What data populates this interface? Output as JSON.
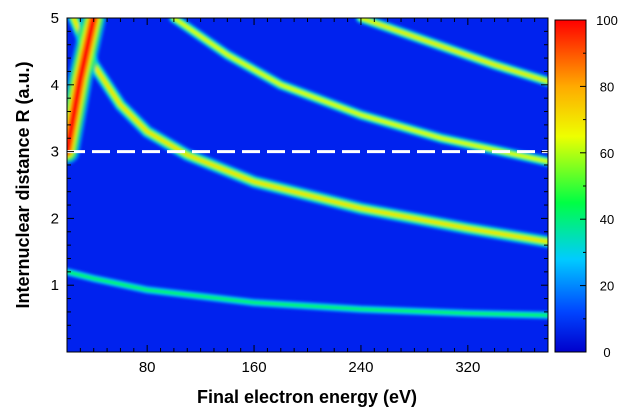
{
  "chart_data": {
    "type": "heatmap",
    "title": "",
    "xlabel": "Final electron energy (eV)",
    "ylabel": "Internuclear distance R (a.u.)",
    "xlim": [
      20,
      380
    ],
    "ylim": [
      0,
      5
    ],
    "x_ticks": [
      80,
      160,
      240,
      320
    ],
    "x_tick_labels": [
      "80",
      "160",
      "240",
      "320"
    ],
    "y_ticks": [
      1,
      2,
      3,
      4,
      5
    ],
    "y_tick_labels": [
      "1",
      "2",
      "3",
      "4",
      "5"
    ],
    "colorbar": {
      "range": [
        0,
        100
      ],
      "ticks": [
        0,
        20,
        40,
        60,
        80,
        100
      ],
      "tick_labels": [
        "0",
        "20",
        "40",
        "60",
        "80",
        "100"
      ],
      "colormap": [
        "#0000cc",
        "#0044ff",
        "#00ccff",
        "#00ff44",
        "#eeff00",
        "#ffaa00",
        "#ff0000"
      ]
    },
    "reference_line": {
      "y": 3.0,
      "style": "dashed",
      "color": "#ffffff"
    },
    "bands": [
      {
        "points": [
          [
            20,
            1.2
          ],
          [
            40,
            1.1
          ],
          [
            80,
            0.93
          ],
          [
            160,
            0.74
          ],
          [
            240,
            0.64
          ],
          [
            320,
            0.58
          ],
          [
            380,
            0.55
          ]
        ],
        "peak": 45,
        "width": 0.045
      },
      {
        "points": [
          [
            25,
            5.0
          ],
          [
            40,
            4.3
          ],
          [
            60,
            3.7
          ],
          [
            80,
            3.3
          ],
          [
            110,
            2.95
          ],
          [
            160,
            2.55
          ],
          [
            240,
            2.15
          ],
          [
            320,
            1.85
          ],
          [
            380,
            1.65
          ]
        ],
        "peak": 70,
        "width": 0.065
      },
      {
        "points": [
          [
            100,
            5.0
          ],
          [
            140,
            4.45
          ],
          [
            180,
            4.0
          ],
          [
            240,
            3.55
          ],
          [
            300,
            3.2
          ],
          [
            380,
            2.85
          ]
        ],
        "peak": 65,
        "width": 0.055
      },
      {
        "points": [
          [
            240,
            5.0
          ],
          [
            290,
            4.65
          ],
          [
            340,
            4.3
          ],
          [
            380,
            4.05
          ]
        ],
        "peak": 68,
        "width": 0.055
      },
      {
        "points": [
          [
            20,
            3.0
          ],
          [
            30,
            4.1
          ],
          [
            40,
            5.0
          ]
        ],
        "peak": 100,
        "width": 0.12
      }
    ]
  }
}
